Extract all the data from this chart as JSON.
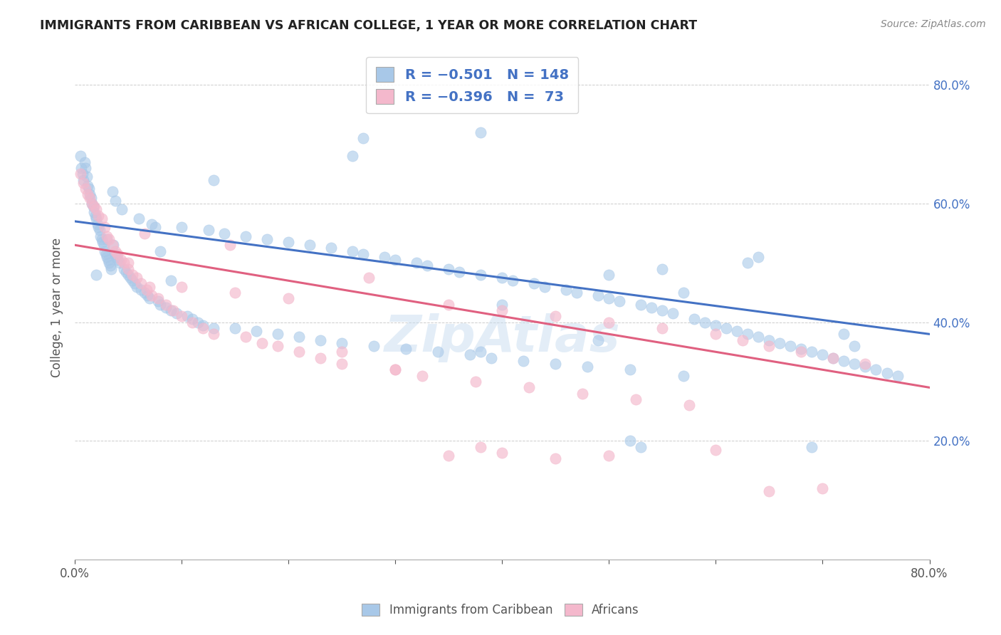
{
  "title": "IMMIGRANTS FROM CARIBBEAN VS AFRICAN COLLEGE, 1 YEAR OR MORE CORRELATION CHART",
  "source": "Source: ZipAtlas.com",
  "ylabel": "College, 1 year or more",
  "xlim": [
    0.0,
    0.8
  ],
  "ylim": [
    0.0,
    0.85
  ],
  "blue_color": "#a8c8e8",
  "pink_color": "#f4b8cc",
  "blue_line_color": "#4472c4",
  "pink_line_color": "#e06080",
  "legend_text_color": "#4472c4",
  "watermark": "ZipAtlas",
  "blue_trend_x": [
    0.0,
    0.8
  ],
  "blue_trend_y": [
    0.57,
    0.38
  ],
  "pink_trend_x": [
    0.0,
    0.8
  ],
  "pink_trend_y": [
    0.53,
    0.29
  ],
  "caribbean_x": [
    0.005,
    0.006,
    0.007,
    0.008,
    0.009,
    0.01,
    0.011,
    0.012,
    0.013,
    0.014,
    0.015,
    0.016,
    0.017,
    0.018,
    0.019,
    0.02,
    0.021,
    0.022,
    0.023,
    0.024,
    0.025,
    0.026,
    0.027,
    0.028,
    0.029,
    0.03,
    0.031,
    0.032,
    0.033,
    0.034,
    0.035,
    0.036,
    0.037,
    0.038,
    0.039,
    0.04,
    0.042,
    0.044,
    0.046,
    0.048,
    0.05,
    0.052,
    0.054,
    0.056,
    0.058,
    0.06,
    0.062,
    0.065,
    0.068,
    0.07,
    0.072,
    0.075,
    0.078,
    0.08,
    0.085,
    0.09,
    0.095,
    0.1,
    0.105,
    0.11,
    0.115,
    0.12,
    0.125,
    0.13,
    0.14,
    0.15,
    0.16,
    0.17,
    0.18,
    0.19,
    0.2,
    0.21,
    0.22,
    0.23,
    0.24,
    0.25,
    0.26,
    0.27,
    0.28,
    0.29,
    0.3,
    0.31,
    0.32,
    0.33,
    0.34,
    0.35,
    0.36,
    0.37,
    0.38,
    0.39,
    0.4,
    0.41,
    0.42,
    0.43,
    0.44,
    0.45,
    0.46,
    0.47,
    0.48,
    0.49,
    0.5,
    0.51,
    0.52,
    0.53,
    0.54,
    0.55,
    0.56,
    0.57,
    0.58,
    0.59,
    0.6,
    0.61,
    0.62,
    0.63,
    0.64,
    0.65,
    0.66,
    0.67,
    0.68,
    0.69,
    0.7,
    0.71,
    0.72,
    0.73,
    0.74,
    0.75,
    0.76,
    0.77,
    0.26,
    0.27,
    0.13,
    0.08,
    0.09,
    0.38,
    0.5,
    0.38,
    0.49,
    0.4,
    0.55,
    0.57,
    0.63,
    0.64,
    0.72,
    0.73,
    0.52,
    0.53,
    0.69,
    0.02,
    0.03
  ],
  "caribbean_y": [
    0.68,
    0.66,
    0.65,
    0.64,
    0.67,
    0.66,
    0.645,
    0.63,
    0.625,
    0.615,
    0.61,
    0.6,
    0.595,
    0.585,
    0.58,
    0.575,
    0.565,
    0.56,
    0.555,
    0.545,
    0.54,
    0.535,
    0.53,
    0.52,
    0.515,
    0.51,
    0.505,
    0.5,
    0.495,
    0.49,
    0.62,
    0.53,
    0.515,
    0.605,
    0.51,
    0.505,
    0.5,
    0.59,
    0.49,
    0.485,
    0.48,
    0.475,
    0.47,
    0.465,
    0.46,
    0.575,
    0.455,
    0.45,
    0.445,
    0.44,
    0.565,
    0.56,
    0.435,
    0.43,
    0.425,
    0.42,
    0.415,
    0.56,
    0.41,
    0.405,
    0.4,
    0.395,
    0.555,
    0.39,
    0.55,
    0.39,
    0.545,
    0.385,
    0.54,
    0.38,
    0.535,
    0.375,
    0.53,
    0.37,
    0.525,
    0.365,
    0.52,
    0.515,
    0.36,
    0.51,
    0.505,
    0.355,
    0.5,
    0.495,
    0.35,
    0.49,
    0.485,
    0.345,
    0.48,
    0.34,
    0.475,
    0.47,
    0.335,
    0.465,
    0.46,
    0.33,
    0.455,
    0.45,
    0.325,
    0.445,
    0.44,
    0.435,
    0.32,
    0.43,
    0.425,
    0.42,
    0.415,
    0.31,
    0.405,
    0.4,
    0.395,
    0.39,
    0.385,
    0.38,
    0.375,
    0.37,
    0.365,
    0.36,
    0.355,
    0.35,
    0.345,
    0.34,
    0.335,
    0.33,
    0.325,
    0.32,
    0.315,
    0.31,
    0.68,
    0.71,
    0.64,
    0.52,
    0.47,
    0.72,
    0.48,
    0.35,
    0.37,
    0.43,
    0.49,
    0.45,
    0.5,
    0.51,
    0.38,
    0.36,
    0.2,
    0.19,
    0.19,
    0.48,
    0.54
  ],
  "african_x": [
    0.005,
    0.008,
    0.01,
    0.012,
    0.014,
    0.016,
    0.018,
    0.02,
    0.022,
    0.025,
    0.028,
    0.03,
    0.032,
    0.035,
    0.038,
    0.04,
    0.043,
    0.046,
    0.05,
    0.054,
    0.058,
    0.062,
    0.067,
    0.072,
    0.078,
    0.085,
    0.092,
    0.1,
    0.11,
    0.12,
    0.13,
    0.145,
    0.16,
    0.175,
    0.19,
    0.21,
    0.23,
    0.25,
    0.275,
    0.3,
    0.325,
    0.35,
    0.375,
    0.4,
    0.425,
    0.45,
    0.475,
    0.5,
    0.525,
    0.55,
    0.575,
    0.6,
    0.625,
    0.65,
    0.68,
    0.71,
    0.74,
    0.05,
    0.1,
    0.15,
    0.2,
    0.25,
    0.3,
    0.35,
    0.4,
    0.45,
    0.5,
    0.6,
    0.65,
    0.7,
    0.065,
    0.07,
    0.38
  ],
  "african_y": [
    0.65,
    0.635,
    0.625,
    0.615,
    0.61,
    0.6,
    0.595,
    0.59,
    0.58,
    0.575,
    0.56,
    0.545,
    0.54,
    0.53,
    0.52,
    0.515,
    0.505,
    0.5,
    0.49,
    0.48,
    0.475,
    0.465,
    0.455,
    0.445,
    0.44,
    0.43,
    0.42,
    0.41,
    0.4,
    0.39,
    0.38,
    0.53,
    0.375,
    0.365,
    0.36,
    0.35,
    0.34,
    0.33,
    0.475,
    0.32,
    0.31,
    0.43,
    0.3,
    0.42,
    0.29,
    0.41,
    0.28,
    0.4,
    0.27,
    0.39,
    0.26,
    0.38,
    0.37,
    0.36,
    0.35,
    0.34,
    0.33,
    0.5,
    0.46,
    0.45,
    0.44,
    0.35,
    0.32,
    0.175,
    0.18,
    0.17,
    0.175,
    0.185,
    0.115,
    0.12,
    0.55,
    0.46,
    0.19
  ]
}
